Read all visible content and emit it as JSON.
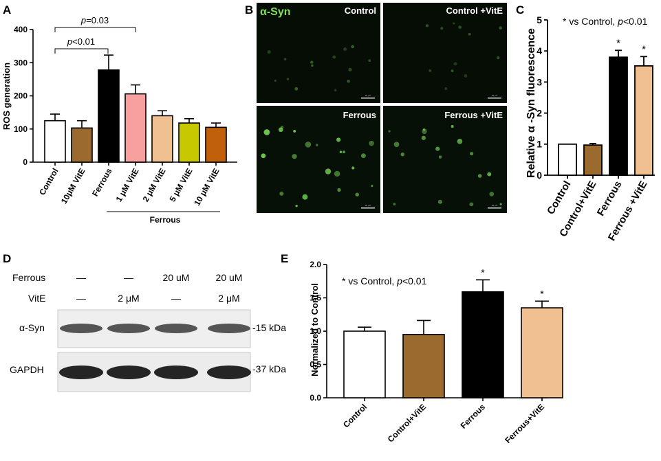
{
  "panels": {
    "a": {
      "letter": "A",
      "ylabel": "ROS generation",
      "yticks": [
        "0",
        "100",
        "200",
        "300",
        "400"
      ],
      "sig": [
        {
          "text_p": "p",
          "text_rest": "=0.03"
        },
        {
          "text_p": "p",
          "text_rest": "<0.01"
        }
      ],
      "group_label": "Ferrous"
    },
    "b": {
      "letter": "B",
      "stain": "α-Syn",
      "tiles": [
        "Control",
        "Control +VitE",
        "Ferrous",
        "Ferrous +VitE"
      ],
      "scalebar": "50 µm"
    },
    "c": {
      "letter": "C",
      "ylabel": "Relative α -Syn fluorescence",
      "yticks": [
        "0",
        "1",
        "2",
        "3",
        "4",
        "5"
      ],
      "note_star": "*",
      "note_text": " vs Control, ",
      "note_p": "p",
      "note_rest": "<0.01"
    },
    "d": {
      "letter": "D",
      "row_labels": {
        "ferrous": "Ferrous",
        "vite": "VitE",
        "asyn": "α-Syn",
        "gapdh": "GAPDH"
      },
      "ferrous_vals": [
        "—",
        "—",
        "20 uM",
        "20 uM"
      ],
      "vite_vals": [
        "—",
        "2 μM",
        "—",
        "2 μM"
      ],
      "markers": [
        "-15 kDa",
        "-37 kDa"
      ]
    },
    "e": {
      "letter": "E",
      "ylabel": "Normalized to Control",
      "yticks": [
        "0.0",
        "0.5",
        "1.0",
        "1.5",
        "2.0"
      ],
      "note_star": "*",
      "note_text": " vs Control, ",
      "note_p": "p",
      "note_rest": "<0.01"
    }
  },
  "colors": {
    "white": "#ffffff",
    "brown": "#9a6a2e",
    "black": "#000000",
    "pink": "#f8a0a0",
    "peach": "#f0c090",
    "olive": "#c8c800",
    "orange": "#c0600a",
    "green": "#7ce05a"
  },
  "chart_data": [
    {
      "panel": "A",
      "type": "bar",
      "title": "",
      "xlabel": "",
      "ylabel": "ROS generation",
      "categories": [
        "Control",
        "10μM VitE",
        "Ferrous",
        "1 μM VitE",
        "2 μM VitE",
        "5 μM VitE",
        "10 μM VitE"
      ],
      "values": [
        125,
        103,
        278,
        206,
        140,
        118,
        105
      ],
      "errors": [
        20,
        22,
        45,
        27,
        15,
        13,
        13
      ],
      "ylim": [
        0,
        400
      ],
      "grid": false
    },
    {
      "panel": "C",
      "type": "bar",
      "title": "",
      "xlabel": "",
      "ylabel": "Relative α -Syn fluorescence",
      "categories": [
        "Control",
        "Control+VitE",
        "Ferrous",
        "Ferrous +VitE"
      ],
      "values": [
        1.0,
        0.97,
        3.8,
        3.52
      ],
      "errors": [
        0.0,
        0.05,
        0.22,
        0.3
      ],
      "significant": [
        false,
        false,
        true,
        true
      ],
      "ylim": [
        0,
        5
      ],
      "grid": false
    },
    {
      "panel": "E",
      "type": "bar",
      "title": "",
      "xlabel": "",
      "ylabel": "Normalized to Control",
      "categories": [
        "Control",
        "Control+VitE",
        "Ferrous",
        "Ferrous+VitE"
      ],
      "values": [
        1.0,
        0.95,
        1.59,
        1.35
      ],
      "errors": [
        0.06,
        0.21,
        0.18,
        0.1
      ],
      "significant": [
        false,
        false,
        true,
        true
      ],
      "ylim": [
        0,
        2
      ],
      "grid": false
    }
  ]
}
